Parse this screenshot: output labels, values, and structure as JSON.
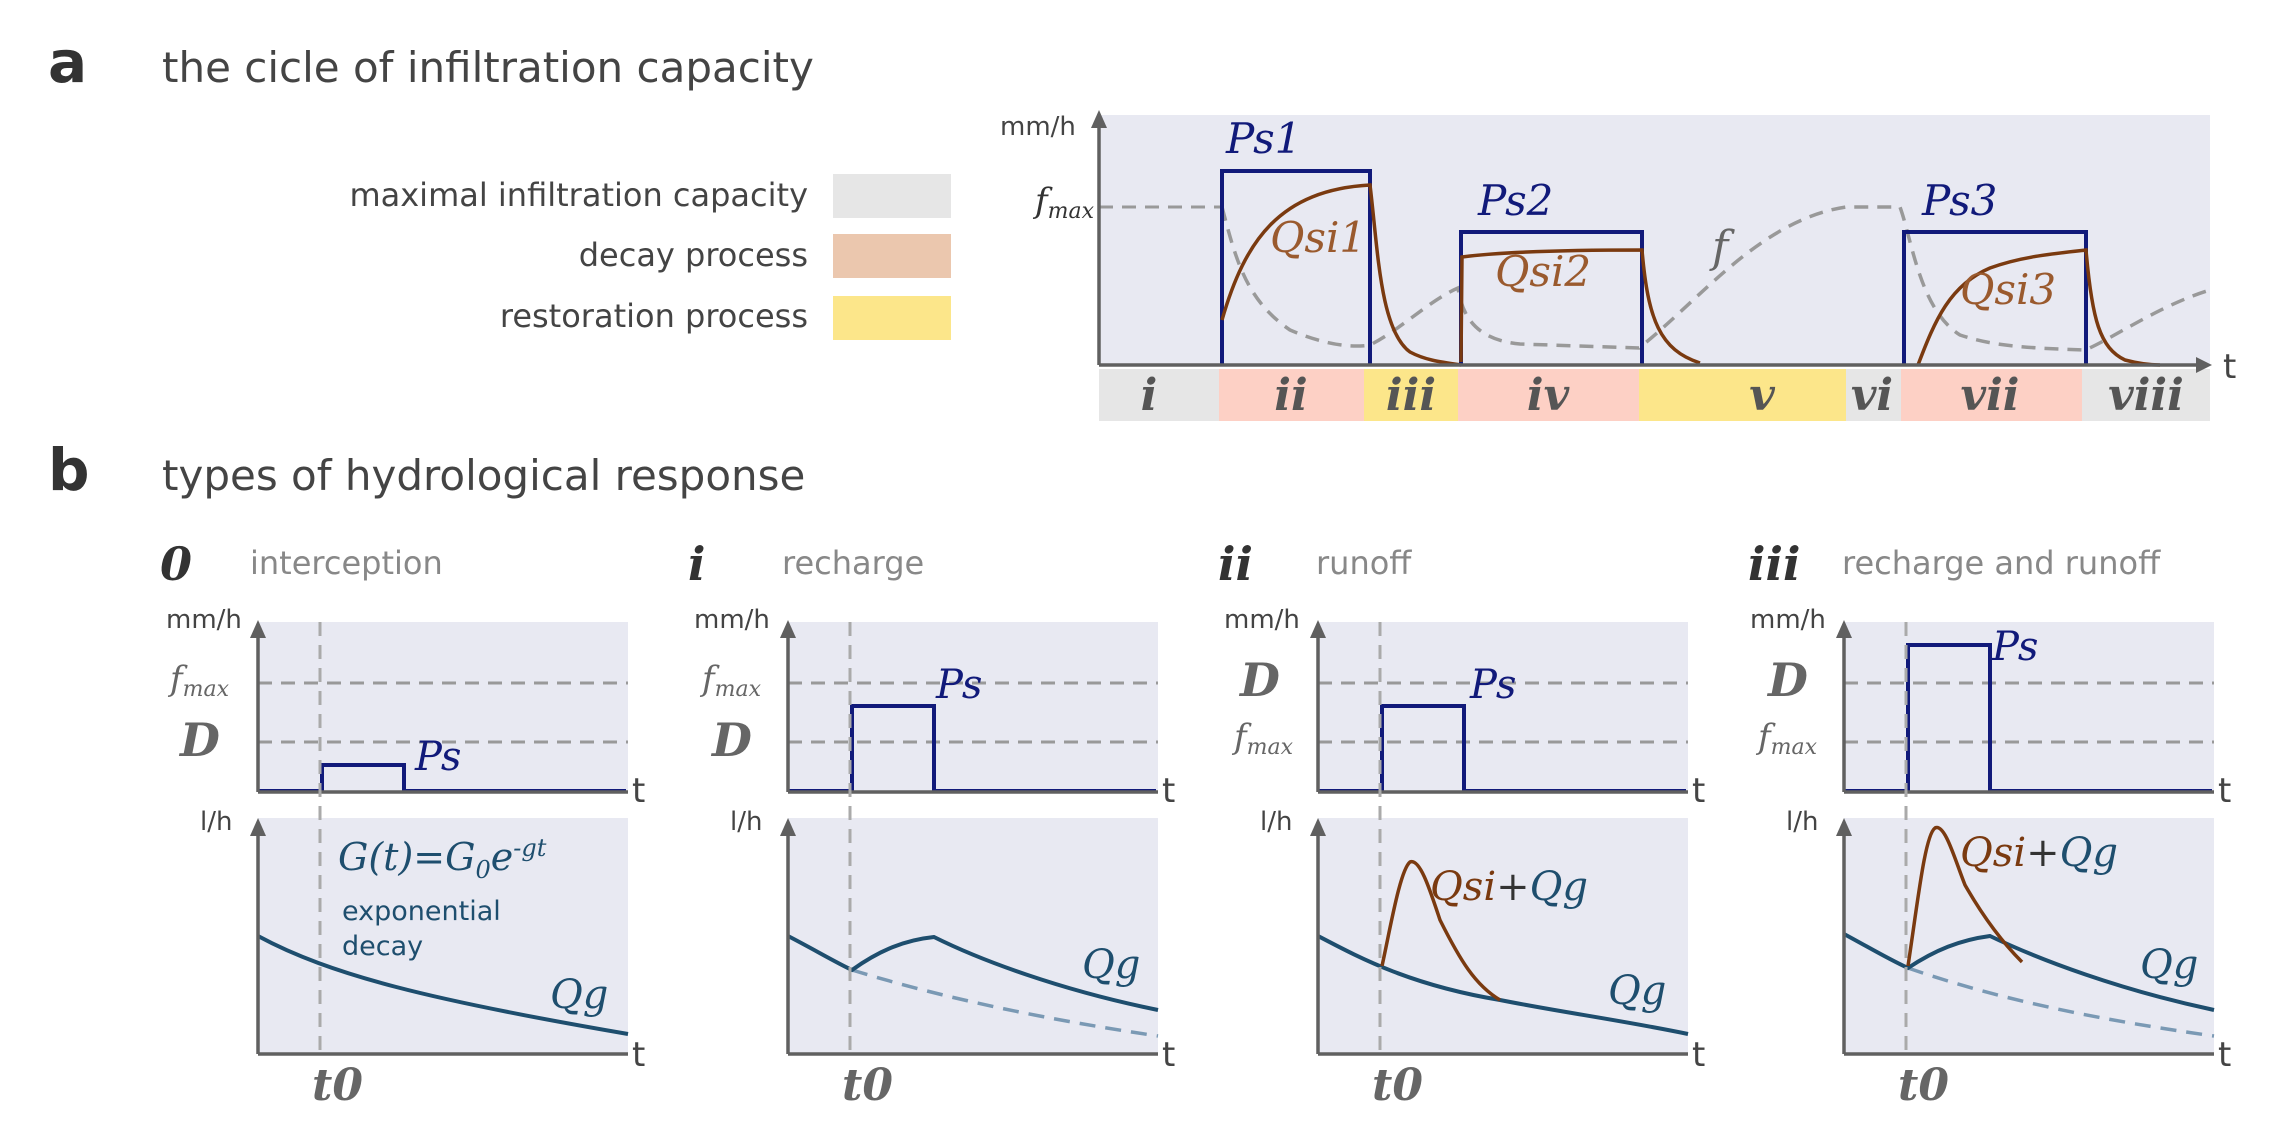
{
  "panel_a": {
    "letter": "a",
    "title": "the cicle of infiltration capacity",
    "legend": [
      {
        "label": "maximal infiltration capacity",
        "color": "#e6e6e6"
      },
      {
        "label": "decay process",
        "color": "#ebc7ae"
      },
      {
        "label": "restoration process",
        "color": "#fce68a"
      }
    ],
    "y_unit": "mm/h",
    "x_label": "t",
    "fmax_label": "f",
    "fmax_sub": "max",
    "f_label": "f",
    "ps_labels": [
      "Ps1",
      "Ps2",
      "Ps3"
    ],
    "qsi_labels": [
      "Qsi1",
      "Qsi2",
      "Qsi3"
    ],
    "segments": [
      {
        "label": "i",
        "color": "#e6e6e6"
      },
      {
        "label": "ii",
        "color": "#fdd0c5"
      },
      {
        "label": "iii",
        "color": "#fce68a"
      },
      {
        "label": "iv",
        "color": "#fdd0c5"
      },
      {
        "label": "v",
        "color": "#fce68a"
      },
      {
        "label": "vi",
        "color": "#e6e6e6"
      },
      {
        "label": "vii",
        "color": "#fdd0c5"
      },
      {
        "label": "viii",
        "color": "#e6e6e6"
      }
    ]
  },
  "panel_b": {
    "letter": "b",
    "title": "types of hydrological response",
    "top_unit": "mm/h",
    "bottom_unit": "l/h",
    "x_label": "t",
    "t0_label": "t0",
    "ps_label": "Ps",
    "qg_label": "Qg",
    "D_label": "D",
    "fmax_label": "f",
    "fmax_sub": "max",
    "qsi_label": "Qsi",
    "plus": "+",
    "equation": {
      "lhs": "G(t)=G",
      "sub": "0",
      "base": "e",
      "sup": "-gt"
    },
    "decay_note": [
      "exponential",
      "decay"
    ],
    "subpanels": [
      {
        "num": "0",
        "title": "interception"
      },
      {
        "num": "i",
        "title": "recharge"
      },
      {
        "num": "ii",
        "title": "runoff"
      },
      {
        "num": "iii",
        "title": "recharge and runoff"
      }
    ]
  }
}
